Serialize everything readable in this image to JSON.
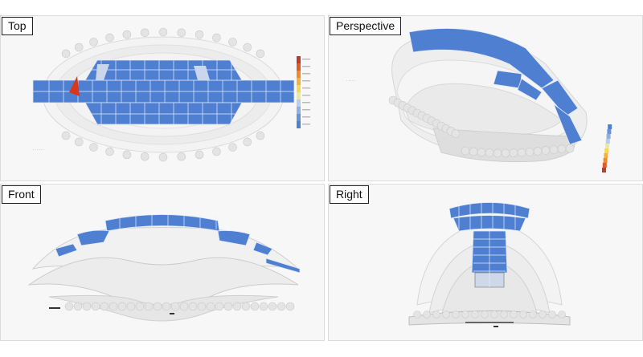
{
  "viewports": {
    "top": {
      "label": "Top"
    },
    "perspective": {
      "label": "Perspective"
    },
    "front": {
      "label": "Front"
    },
    "right": {
      "label": "Right"
    }
  },
  "colors": {
    "panel_blue": "#4f7fd1",
    "panel_stroke": "#dfe8f8",
    "shell": "#f0f0f0",
    "hot_red": "#d9361c",
    "legend": [
      "#c0392b",
      "#e05a2a",
      "#f08a2a",
      "#f4b33a",
      "#f5d55a",
      "#e9e9a0",
      "#b9cde9",
      "#8fb0e2",
      "#6a93d6",
      "#4f7fd1"
    ]
  }
}
